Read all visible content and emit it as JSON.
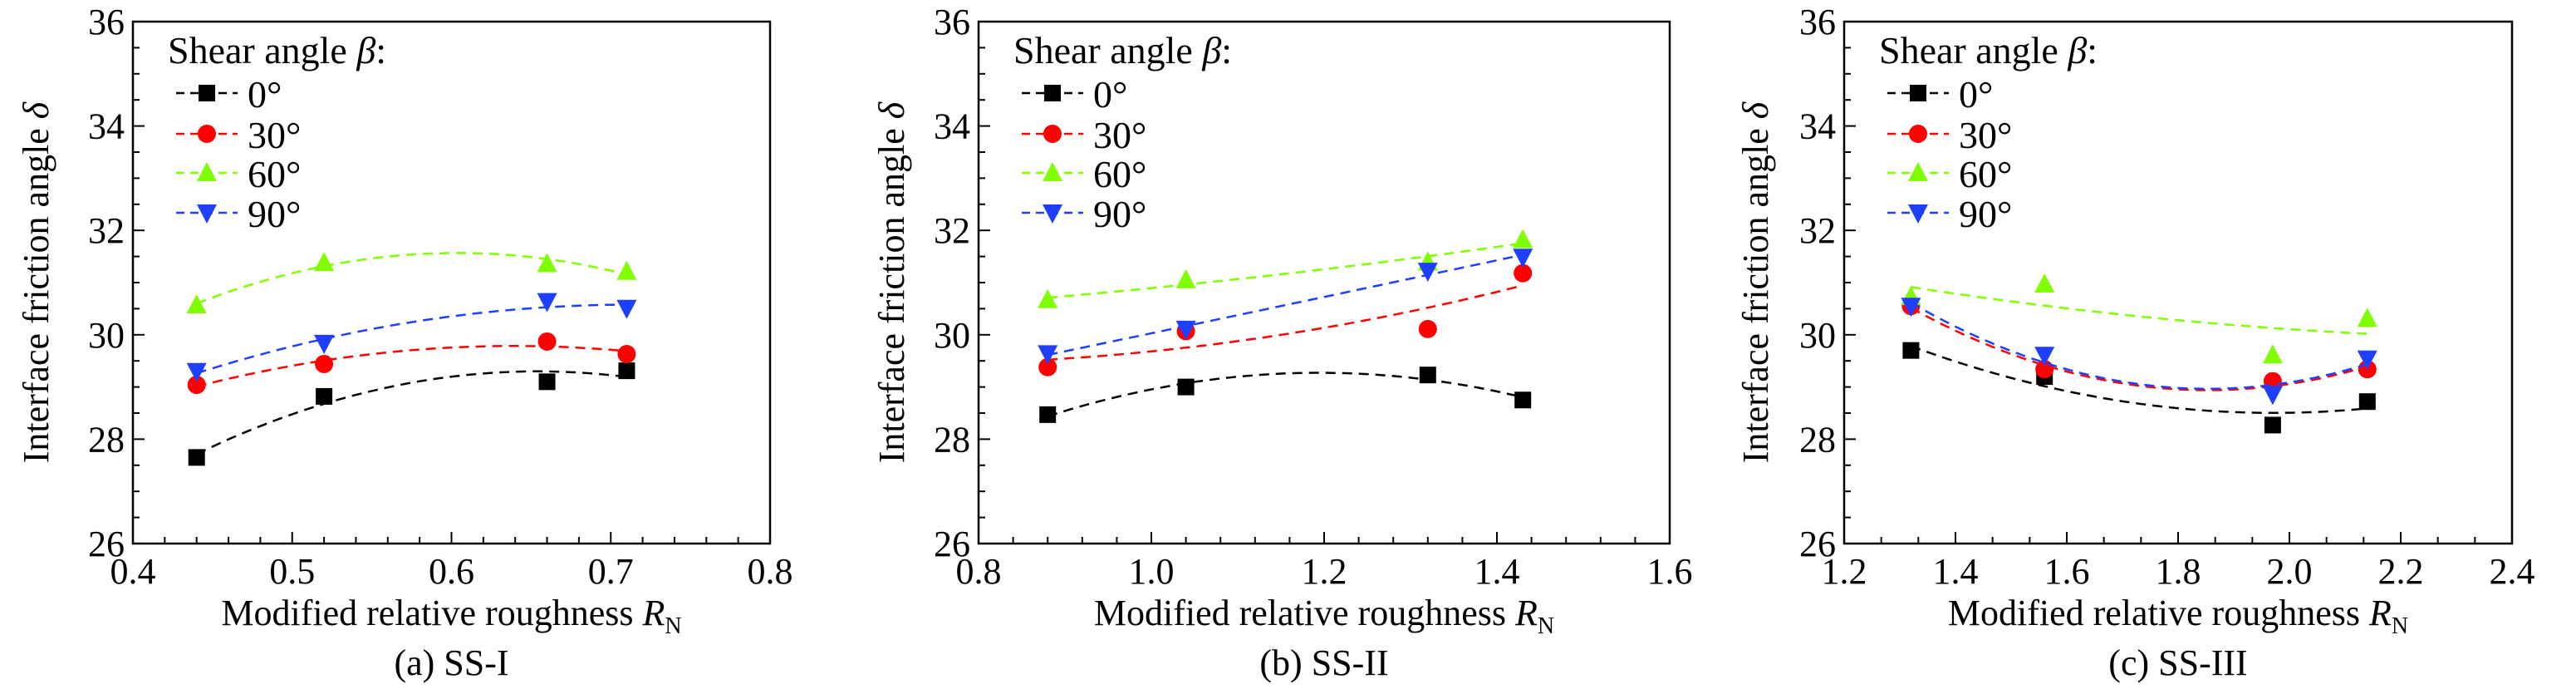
{
  "chart_data": [
    {
      "type": "line",
      "caption": "(a) SS-I",
      "xlabel": "Modified relative roughness ",
      "xlabel_symbol": "R",
      "xlabel_subscript": "N",
      "ylabel": "Interface friction angle ",
      "ylabel_symbol": "δ",
      "xlim": [
        0.4,
        0.8
      ],
      "ylim": [
        26,
        36
      ],
      "xticks": [
        "0.4",
        "0.5",
        "0.6",
        "0.7",
        "0.8"
      ],
      "yticks": [
        "26",
        "28",
        "30",
        "32",
        "34",
        "36"
      ],
      "legend_title": "Shear angle ",
      "legend_title_symbol": "β",
      "legend_title_suffix": ":",
      "legend_position": "top-left",
      "x": [
        0.44,
        0.52,
        0.66,
        0.71
      ],
      "series": [
        {
          "name": "0°",
          "color": "#000000",
          "marker": "square",
          "values": [
            27.65,
            28.82,
            29.1,
            29.31
          ]
        },
        {
          "name": "30°",
          "color": "#ff0000",
          "marker": "circle",
          "values": [
            29.04,
            29.44,
            29.87,
            29.63
          ]
        },
        {
          "name": "60°",
          "color": "#7fff00",
          "marker": "triangle-up",
          "values": [
            30.57,
            31.38,
            31.36,
            31.21
          ]
        },
        {
          "name": "90°",
          "color": "#1f3fff",
          "marker": "triangle-down",
          "values": [
            29.3,
            29.84,
            30.64,
            30.51
          ]
        }
      ]
    },
    {
      "type": "line",
      "caption": "(b) SS-II",
      "xlabel": "Modified relative roughness ",
      "xlabel_symbol": "R",
      "xlabel_subscript": "N",
      "ylabel": "Interface friction angle ",
      "ylabel_symbol": "δ",
      "xlim": [
        0.8,
        1.6
      ],
      "ylim": [
        26,
        36
      ],
      "xticks": [
        "0.8",
        "1.0",
        "1.2",
        "1.4",
        "1.6"
      ],
      "yticks": [
        "26",
        "28",
        "30",
        "32",
        "34",
        "36"
      ],
      "legend_title": "Shear angle ",
      "legend_title_symbol": "β",
      "legend_title_suffix": ":",
      "legend_position": "top-left",
      "x": [
        0.88,
        1.04,
        1.32,
        1.43
      ],
      "series": [
        {
          "name": "0°",
          "color": "#000000",
          "marker": "square",
          "values": [
            28.47,
            29.0,
            29.23,
            28.75
          ]
        },
        {
          "name": "30°",
          "color": "#ff0000",
          "marker": "circle",
          "values": [
            29.38,
            30.07,
            30.11,
            31.18
          ]
        },
        {
          "name": "60°",
          "color": "#7fff00",
          "marker": "triangle-up",
          "values": [
            30.67,
            31.05,
            31.39,
            31.82
          ]
        },
        {
          "name": "90°",
          "color": "#1f3fff",
          "marker": "triangle-down",
          "values": [
            29.64,
            30.11,
            31.22,
            31.49
          ]
        }
      ]
    },
    {
      "type": "line",
      "caption": "(c) SS-III",
      "xlabel": "Modified relative roughness ",
      "xlabel_symbol": "R",
      "xlabel_subscript": "N",
      "ylabel": "Interface friction angle ",
      "ylabel_symbol": "δ",
      "xlim": [
        1.2,
        2.4
      ],
      "ylim": [
        26,
        36
      ],
      "xticks": [
        "1.2",
        "1.4",
        "1.6",
        "1.8",
        "2.0",
        "2.2",
        "2.4"
      ],
      "yticks": [
        "26",
        "28",
        "30",
        "32",
        "34",
        "36"
      ],
      "legend_title": "Shear angle ",
      "legend_title_symbol": "β",
      "legend_title_suffix": ":",
      "legend_position": "top-left",
      "x": [
        1.32,
        1.56,
        1.97,
        2.14
      ],
      "series": [
        {
          "name": "0°",
          "color": "#000000",
          "marker": "square",
          "values": [
            29.7,
            29.2,
            28.27,
            28.72
          ]
        },
        {
          "name": "30°",
          "color": "#ff0000",
          "marker": "circle",
          "values": [
            30.55,
            29.34,
            29.11,
            29.34
          ]
        },
        {
          "name": "60°",
          "color": "#7fff00",
          "marker": "triangle-up",
          "values": [
            30.73,
            30.97,
            29.61,
            30.31
          ]
        },
        {
          "name": "90°",
          "color": "#1f3fff",
          "marker": "triangle-down",
          "values": [
            30.55,
            29.61,
            28.86,
            29.54
          ]
        }
      ]
    }
  ]
}
